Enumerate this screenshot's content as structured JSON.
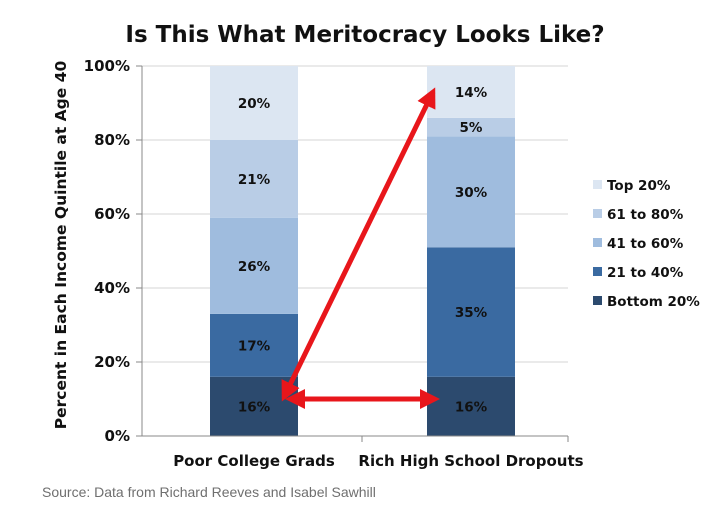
{
  "source_text": "Source: Data from Richard Reeves and Isabel Sawhill",
  "colors": {
    "Bottom 20%": "#2c4a6e",
    "21 to 40%": "#3a6aa1",
    "41 to 60%": "#9fbcde",
    "61 to 80%": "#b9cde6",
    "Top 20%": "#dce6f2",
    "arrow": "#e8161b",
    "axis": "#888888"
  },
  "chart_data": {
    "type": "bar",
    "stacked": true,
    "title": "Is This What Meritocracy Looks Like?",
    "xlabel": "",
    "ylabel": "Percent in Each Income Quintile at Age 40",
    "ylim": [
      0,
      100
    ],
    "yticks": [
      "0%",
      "20%",
      "40%",
      "60%",
      "80%",
      "100%"
    ],
    "categories": [
      "Poor College Grads",
      "Rich High School Dropouts"
    ],
    "series": [
      {
        "name": "Bottom 20%",
        "values": [
          16,
          16
        ],
        "labels": [
          "16%",
          "16%"
        ]
      },
      {
        "name": "21 to 40%",
        "values": [
          17,
          35
        ],
        "labels": [
          "17%",
          "35%"
        ]
      },
      {
        "name": "41 to 60%",
        "values": [
          26,
          30
        ],
        "labels": [
          "26%",
          "30%"
        ]
      },
      {
        "name": "61 to 80%",
        "values": [
          21,
          5
        ],
        "labels": [
          "21%",
          "5%"
        ]
      },
      {
        "name": "Top 20%",
        "values": [
          20,
          14
        ],
        "labels": [
          "20%",
          "14%"
        ]
      }
    ],
    "legend": [
      "Top 20%",
      "61 to 80%",
      "41 to 60%",
      "21 to 40%",
      "Bottom 20%"
    ],
    "legend_position": "right",
    "annotations": [
      {
        "type": "double-arrow",
        "from": {
          "category": 0,
          "value": 10
        },
        "to": {
          "category": 1,
          "value": 10
        }
      },
      {
        "type": "double-arrow",
        "from": {
          "category": 0,
          "value": 10
        },
        "to": {
          "category": 1,
          "value": 93
        }
      }
    ]
  }
}
